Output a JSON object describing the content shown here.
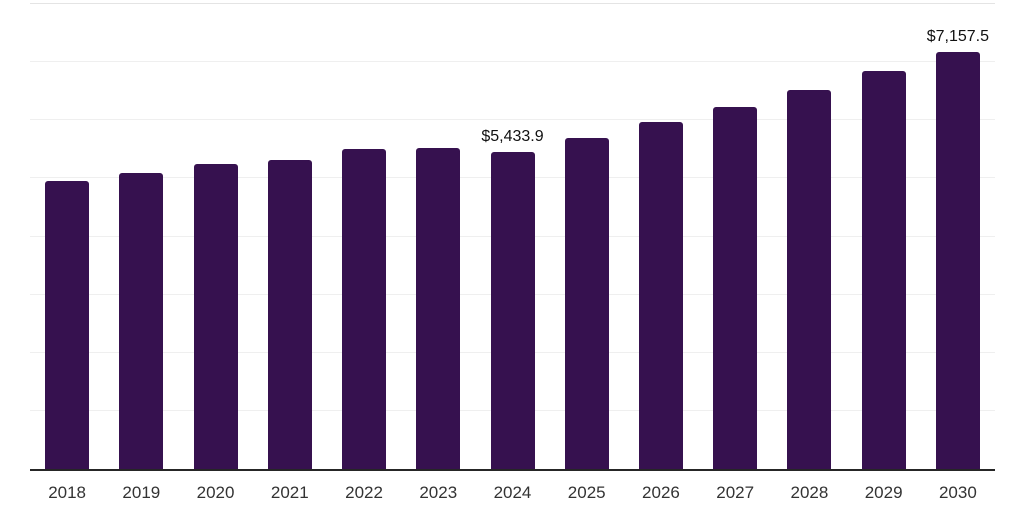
{
  "chart_data": {
    "type": "bar",
    "title": "",
    "xlabel": "",
    "ylabel": "",
    "categories": [
      "2018",
      "2019",
      "2020",
      "2021",
      "2022",
      "2023",
      "2024",
      "2025",
      "2026",
      "2027",
      "2028",
      "2029",
      "2030"
    ],
    "values": [
      4950,
      5090,
      5230,
      5300,
      5500,
      5510,
      5433.9,
      5690,
      5950,
      6220,
      6510,
      6840,
      7157.5
    ],
    "data_labels": [
      "",
      "",
      "",
      "",
      "",
      "",
      "$5,433.9",
      "",
      "",
      "",
      "",
      "",
      "$7,157.5"
    ],
    "ylim": [
      0,
      8000
    ],
    "gridline_step": 1000,
    "grid": true,
    "legend": "none",
    "y_axis_tick_labels_visible": false,
    "colors": {
      "bar": "#36114f",
      "axis_line": "#262626",
      "gridline": "#efefef",
      "gridline_top": "#e4e4e4",
      "tick_label": "#333333",
      "data_label": "#111111",
      "background": "#ffffff"
    }
  }
}
